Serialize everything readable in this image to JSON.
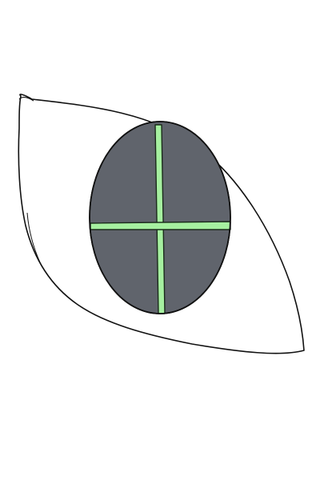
{
  "drawing": {
    "subject": "eye-icon",
    "colors": {
      "background": "#ffffff",
      "outline": "#111111",
      "sclera": "#ffffff",
      "iris": "#60646c",
      "cross": "#a6f0a0",
      "cross_outline": "#1a2a1a"
    }
  }
}
